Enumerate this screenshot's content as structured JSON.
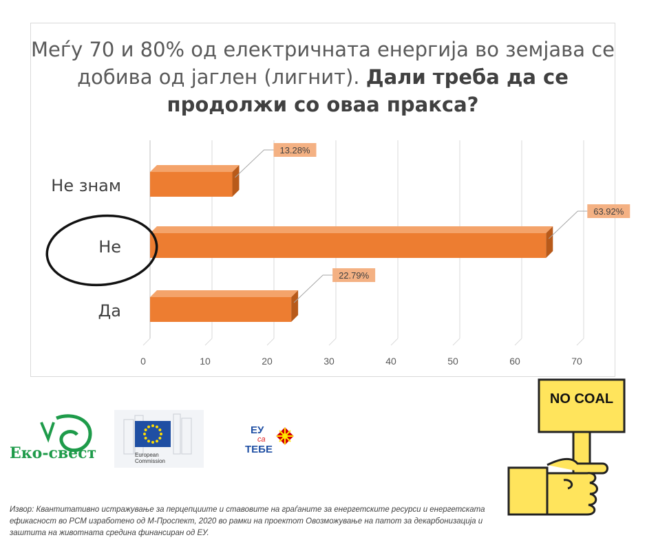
{
  "chart_data": {
    "type": "bar",
    "orientation": "horizontal",
    "title_part1": "Меѓу 70 и 80% од електричната енергија во земјава се добива од јаглен (лигнит).",
    "title_part2": "Дали треба да се продолжи со оваа пракса?",
    "categories": [
      "Не знам",
      "Не",
      "Да"
    ],
    "values": [
      13.28,
      63.92,
      22.79
    ],
    "data_labels": [
      "13.28%",
      "63.92%",
      "22.79%"
    ],
    "xlim": [
      0,
      70
    ],
    "xticks": [
      "0",
      "10",
      "20",
      "30",
      "40",
      "50",
      "60",
      "70"
    ],
    "grid": true,
    "highlighted_category": "Не",
    "bar_color": "#ed7d31",
    "label_bg": "#f4b183"
  },
  "sign_text": "NO COAL",
  "logos": {
    "eko_svest": "Еко-свест",
    "ec_line1": "European",
    "ec_line2": "Commission",
    "eu_top": "ЕУ",
    "eu_mid": "са",
    "eu_bottom": "ТЕБЕ"
  },
  "source": "Извор: Квантитативно истражување за перцепциите и ставовите на граѓаните за енергетските ресурси и енергетската ефикасност во РСМ изработено од М-Проспект, 2020 во рамки на проектот Овозможување на патот за декарбонизација и заштита на животната средина финансиран од ЕУ."
}
